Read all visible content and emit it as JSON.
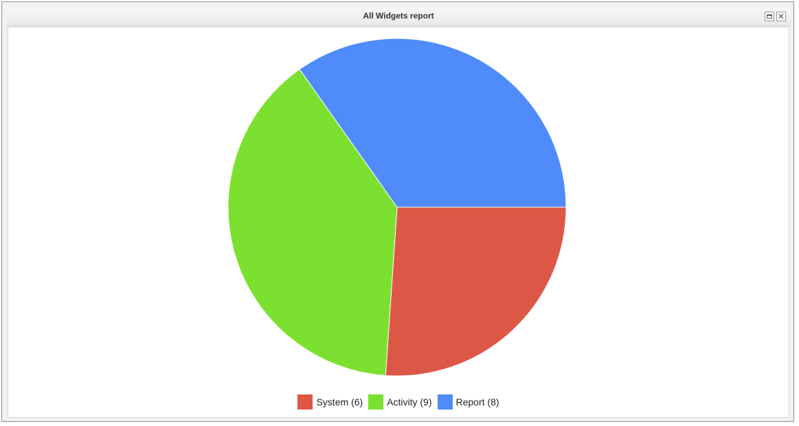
{
  "window": {
    "title": "All Widgets report",
    "maximize_icon": "maximize-icon",
    "close_icon": "close-icon"
  },
  "chart_data": {
    "type": "pie",
    "title": "",
    "legend_position": "bottom",
    "slices": [
      {
        "label": "System (6)",
        "name": "System",
        "value": 6,
        "color": "#dd5746"
      },
      {
        "label": "Activity (9)",
        "name": "Activity",
        "value": 9,
        "color": "#7be02f"
      },
      {
        "label": "Report (8)",
        "name": "Report",
        "value": 8,
        "color": "#4f8bfa"
      }
    ]
  }
}
